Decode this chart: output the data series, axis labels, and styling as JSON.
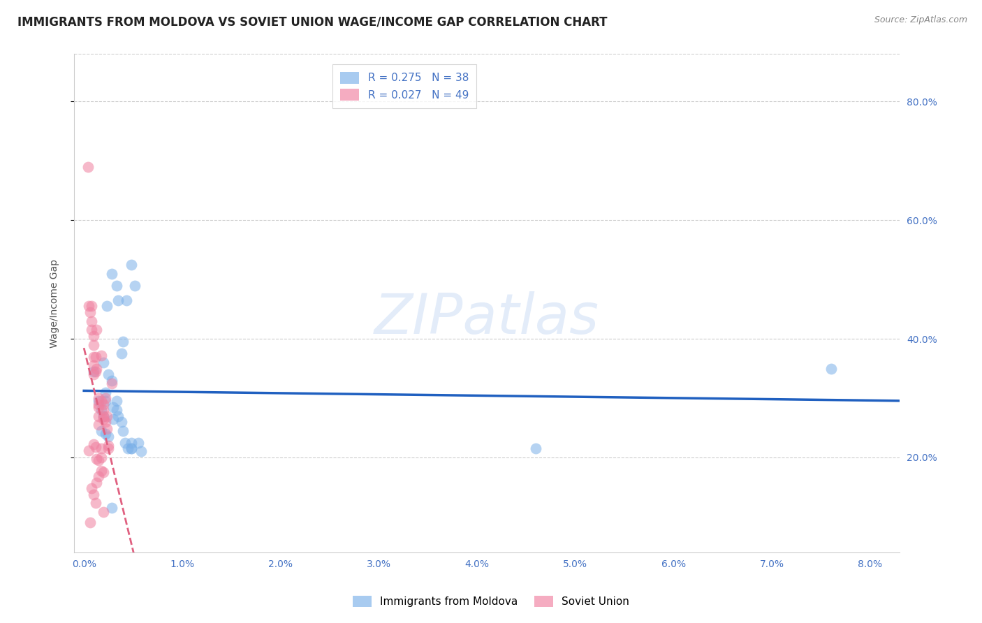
{
  "title": "IMMIGRANTS FROM MOLDOVA VS SOVIET UNION WAGE/INCOME GAP CORRELATION CHART",
  "source": "Source: ZipAtlas.com",
  "ylabel": "Wage/Income Gap",
  "yticks": [
    0.2,
    0.4,
    0.6,
    0.8
  ],
  "ytick_labels": [
    "20.0%",
    "40.0%",
    "60.0%",
    "80.0%"
  ],
  "xticks": [
    0.0,
    0.01,
    0.02,
    0.03,
    0.04,
    0.05,
    0.06,
    0.07,
    0.08
  ],
  "xtick_labels": [
    "0.0%",
    "1.0%",
    "2.0%",
    "3.0%",
    "4.0%",
    "5.0%",
    "6.0%",
    "7.0%",
    "8.0%"
  ],
  "xlim": [
    -0.001,
    0.083
  ],
  "ylim": [
    0.04,
    0.88
  ],
  "watermark": "ZIPatlas",
  "moldova_color": "#7ab0e8",
  "soviet_color": "#f080a0",
  "moldova_line_color": "#2060c0",
  "soviet_line_color": "#e06080",
  "moldova_points": [
    [
      0.0015,
      0.295
    ],
    [
      0.0018,
      0.28
    ],
    [
      0.002,
      0.27
    ],
    [
      0.0022,
      0.31
    ],
    [
      0.0022,
      0.295
    ],
    [
      0.0025,
      0.34
    ],
    [
      0.0028,
      0.33
    ],
    [
      0.003,
      0.285
    ],
    [
      0.003,
      0.265
    ],
    [
      0.0033,
      0.295
    ],
    [
      0.0033,
      0.28
    ],
    [
      0.0035,
      0.27
    ],
    [
      0.0038,
      0.26
    ],
    [
      0.004,
      0.245
    ],
    [
      0.0042,
      0.225
    ],
    [
      0.0045,
      0.215
    ],
    [
      0.0048,
      0.215
    ],
    [
      0.0018,
      0.245
    ],
    [
      0.0022,
      0.24
    ],
    [
      0.0025,
      0.235
    ],
    [
      0.001,
      0.345
    ],
    [
      0.002,
      0.36
    ],
    [
      0.0023,
      0.455
    ],
    [
      0.0028,
      0.51
    ],
    [
      0.0033,
      0.49
    ],
    [
      0.0035,
      0.465
    ],
    [
      0.0038,
      0.375
    ],
    [
      0.004,
      0.395
    ],
    [
      0.0043,
      0.465
    ],
    [
      0.0048,
      0.525
    ],
    [
      0.0052,
      0.49
    ],
    [
      0.0055,
      0.225
    ],
    [
      0.0058,
      0.21
    ],
    [
      0.0048,
      0.225
    ],
    [
      0.0048,
      0.215
    ],
    [
      0.0028,
      0.115
    ],
    [
      0.046,
      0.215
    ],
    [
      0.076,
      0.35
    ]
  ],
  "soviet_points": [
    [
      0.0004,
      0.69
    ],
    [
      0.0005,
      0.455
    ],
    [
      0.0006,
      0.445
    ],
    [
      0.0008,
      0.455
    ],
    [
      0.0008,
      0.43
    ],
    [
      0.0008,
      0.415
    ],
    [
      0.001,
      0.405
    ],
    [
      0.001,
      0.39
    ],
    [
      0.001,
      0.37
    ],
    [
      0.001,
      0.355
    ],
    [
      0.001,
      0.34
    ],
    [
      0.0012,
      0.37
    ],
    [
      0.0012,
      0.345
    ],
    [
      0.0013,
      0.415
    ],
    [
      0.0013,
      0.35
    ],
    [
      0.0015,
      0.3
    ],
    [
      0.0015,
      0.285
    ],
    [
      0.0015,
      0.27
    ],
    [
      0.0015,
      0.255
    ],
    [
      0.0015,
      0.29
    ],
    [
      0.0018,
      0.215
    ],
    [
      0.0018,
      0.2
    ],
    [
      0.0018,
      0.295
    ],
    [
      0.002,
      0.28
    ],
    [
      0.002,
      0.265
    ],
    [
      0.002,
      0.29
    ],
    [
      0.002,
      0.27
    ],
    [
      0.0022,
      0.3
    ],
    [
      0.0022,
      0.26
    ],
    [
      0.0023,
      0.27
    ],
    [
      0.0023,
      0.248
    ],
    [
      0.0025,
      0.22
    ],
    [
      0.0025,
      0.215
    ],
    [
      0.0028,
      0.325
    ],
    [
      0.001,
      0.222
    ],
    [
      0.0012,
      0.218
    ],
    [
      0.0013,
      0.198
    ],
    [
      0.0015,
      0.195
    ],
    [
      0.0018,
      0.178
    ],
    [
      0.002,
      0.175
    ],
    [
      0.0013,
      0.158
    ],
    [
      0.0015,
      0.168
    ],
    [
      0.0008,
      0.148
    ],
    [
      0.001,
      0.138
    ],
    [
      0.0006,
      0.09
    ],
    [
      0.0012,
      0.123
    ],
    [
      0.002,
      0.108
    ],
    [
      0.0005,
      0.212
    ],
    [
      0.0018,
      0.372
    ]
  ],
  "grid_color": "#cccccc",
  "background_color": "#ffffff",
  "tick_color": "#4472c4",
  "title_fontsize": 12,
  "axis_label_fontsize": 10,
  "tick_fontsize": 10,
  "legend_r_color": "#4472c4",
  "legend_n_color": "#e8503a"
}
